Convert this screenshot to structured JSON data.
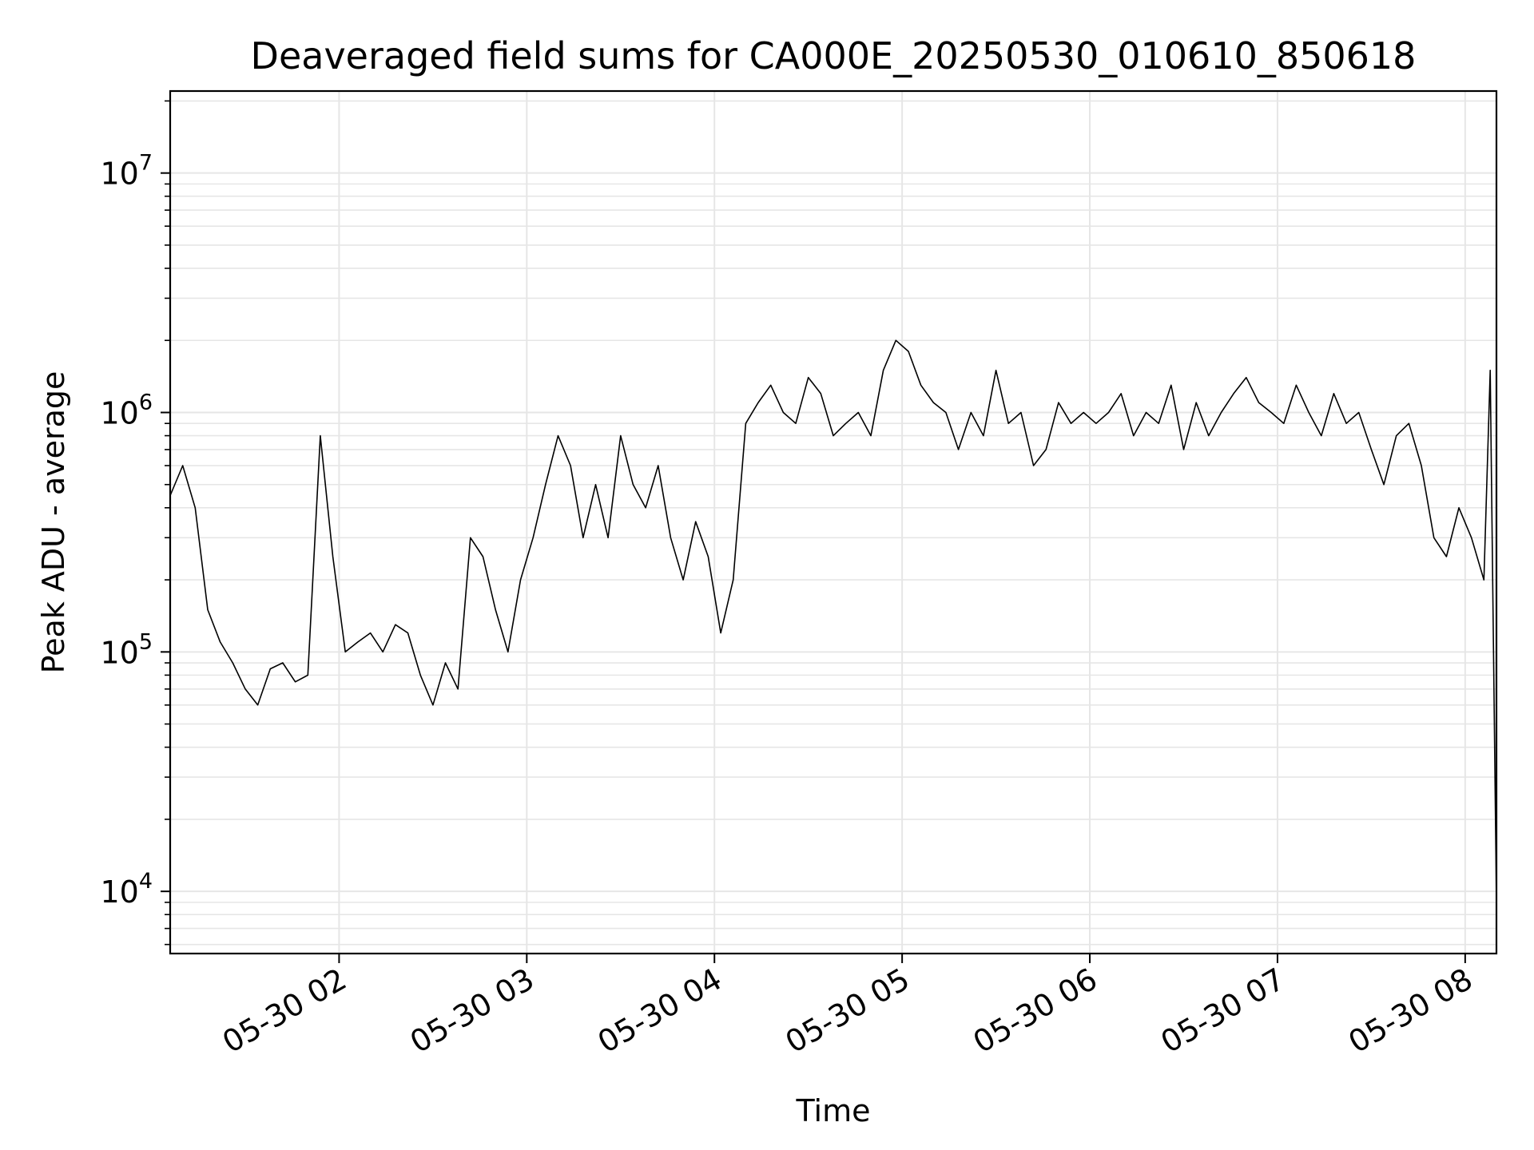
{
  "chart_data": {
    "type": "line",
    "title": "Deaveraged field sums for CA000E_20250530_010610_850618",
    "xlabel": "Time",
    "ylabel": "Peak ADU - average",
    "x_range": [
      "2025-05-30 01:06",
      "2025-05-30 08:10"
    ],
    "y_range": [
      5500,
      22000000
    ],
    "y_scale": "log",
    "grid": {
      "major": true,
      "minor_y": true
    },
    "colors": {
      "line": "#000000",
      "grid": "#e6e6e6",
      "axes": "#000000"
    },
    "x_ticks": [
      {
        "time": "2025-05-30 02:00",
        "label": "05-30 02"
      },
      {
        "time": "2025-05-30 03:00",
        "label": "05-30 03"
      },
      {
        "time": "2025-05-30 04:00",
        "label": "05-30 04"
      },
      {
        "time": "2025-05-30 05:00",
        "label": "05-30 05"
      },
      {
        "time": "2025-05-30 06:00",
        "label": "05-30 06"
      },
      {
        "time": "2025-05-30 07:00",
        "label": "05-30 07"
      },
      {
        "time": "2025-05-30 08:00",
        "label": "05-30 08"
      }
    ],
    "y_ticks": [
      {
        "value": 10000,
        "base": "10",
        "exp": "4"
      },
      {
        "value": 100000,
        "base": "10",
        "exp": "5"
      },
      {
        "value": 1000000,
        "base": "10",
        "exp": "6"
      },
      {
        "value": 10000000,
        "base": "10",
        "exp": "7"
      }
    ],
    "series": [
      {
        "points": [
          [
            "01:06",
            450000
          ],
          [
            "01:10",
            600000
          ],
          [
            "01:14",
            400000
          ],
          [
            "01:18",
            150000
          ],
          [
            "01:22",
            110000
          ],
          [
            "01:26",
            90000
          ],
          [
            "01:30",
            70000
          ],
          [
            "01:34",
            60000
          ],
          [
            "01:38",
            85000
          ],
          [
            "01:42",
            90000
          ],
          [
            "01:46",
            75000
          ],
          [
            "01:50",
            80000
          ],
          [
            "01:54",
            800000
          ],
          [
            "01:58",
            250000
          ],
          [
            "02:02",
            100000
          ],
          [
            "02:06",
            110000
          ],
          [
            "02:10",
            120000
          ],
          [
            "02:14",
            100000
          ],
          [
            "02:18",
            130000
          ],
          [
            "02:22",
            120000
          ],
          [
            "02:26",
            80000
          ],
          [
            "02:30",
            60000
          ],
          [
            "02:34",
            90000
          ],
          [
            "02:38",
            70000
          ],
          [
            "02:42",
            300000
          ],
          [
            "02:46",
            250000
          ],
          [
            "02:50",
            150000
          ],
          [
            "02:54",
            100000
          ],
          [
            "02:58",
            200000
          ],
          [
            "03:02",
            300000
          ],
          [
            "03:06",
            500000
          ],
          [
            "03:10",
            800000
          ],
          [
            "03:14",
            600000
          ],
          [
            "03:18",
            300000
          ],
          [
            "03:22",
            500000
          ],
          [
            "03:26",
            300000
          ],
          [
            "03:30",
            800000
          ],
          [
            "03:34",
            500000
          ],
          [
            "03:38",
            400000
          ],
          [
            "03:42",
            600000
          ],
          [
            "03:46",
            300000
          ],
          [
            "03:50",
            200000
          ],
          [
            "03:54",
            350000
          ],
          [
            "03:58",
            250000
          ],
          [
            "04:02",
            120000
          ],
          [
            "04:06",
            200000
          ],
          [
            "04:10",
            900000
          ],
          [
            "04:14",
            1100000
          ],
          [
            "04:18",
            1300000
          ],
          [
            "04:22",
            1000000
          ],
          [
            "04:26",
            900000
          ],
          [
            "04:30",
            1400000
          ],
          [
            "04:34",
            1200000
          ],
          [
            "04:38",
            800000
          ],
          [
            "04:42",
            900000
          ],
          [
            "04:46",
            1000000
          ],
          [
            "04:50",
            800000
          ],
          [
            "04:54",
            1500000
          ],
          [
            "04:58",
            2000000
          ],
          [
            "05:02",
            1800000
          ],
          [
            "05:06",
            1300000
          ],
          [
            "05:10",
            1100000
          ],
          [
            "05:14",
            1000000
          ],
          [
            "05:18",
            700000
          ],
          [
            "05:22",
            1000000
          ],
          [
            "05:26",
            800000
          ],
          [
            "05:30",
            1500000
          ],
          [
            "05:34",
            900000
          ],
          [
            "05:38",
            1000000
          ],
          [
            "05:42",
            600000
          ],
          [
            "05:46",
            700000
          ],
          [
            "05:50",
            1100000
          ],
          [
            "05:54",
            900000
          ],
          [
            "05:58",
            1000000
          ],
          [
            "06:02",
            900000
          ],
          [
            "06:06",
            1000000
          ],
          [
            "06:10",
            1200000
          ],
          [
            "06:14",
            800000
          ],
          [
            "06:18",
            1000000
          ],
          [
            "06:22",
            900000
          ],
          [
            "06:26",
            1300000
          ],
          [
            "06:30",
            700000
          ],
          [
            "06:34",
            1100000
          ],
          [
            "06:38",
            800000
          ],
          [
            "06:42",
            1000000
          ],
          [
            "06:46",
            1200000
          ],
          [
            "06:50",
            1400000
          ],
          [
            "06:54",
            1100000
          ],
          [
            "06:58",
            1000000
          ],
          [
            "07:02",
            900000
          ],
          [
            "07:06",
            1300000
          ],
          [
            "07:10",
            1000000
          ],
          [
            "07:14",
            800000
          ],
          [
            "07:18",
            1200000
          ],
          [
            "07:22",
            900000
          ],
          [
            "07:26",
            1000000
          ],
          [
            "07:30",
            700000
          ],
          [
            "07:34",
            500000
          ],
          [
            "07:38",
            800000
          ],
          [
            "07:42",
            900000
          ],
          [
            "07:46",
            600000
          ],
          [
            "07:50",
            300000
          ],
          [
            "07:54",
            250000
          ],
          [
            "07:58",
            400000
          ],
          [
            "08:02",
            300000
          ],
          [
            "08:06",
            200000
          ],
          [
            "08:08",
            1500000
          ],
          [
            "08:10",
            9000
          ]
        ]
      }
    ]
  }
}
